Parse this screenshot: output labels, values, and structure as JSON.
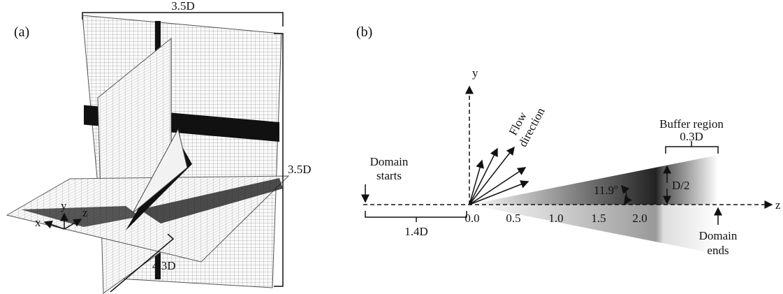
{
  "panel_a": {
    "label": "(a)",
    "dims": {
      "top": "3.5D",
      "right": "3.5D",
      "bottom": "4.3D"
    },
    "axes": {
      "x": "x",
      "y": "y",
      "z": "z"
    }
  },
  "panel_b": {
    "label": "(b)",
    "axis_y": "y",
    "axis_z": "z",
    "flow_direction": [
      "Flow",
      "direction"
    ],
    "buffer_region": {
      "title": "Buffer region",
      "size": "0.3D"
    },
    "domain_starts": [
      "Domain",
      "starts"
    ],
    "inlet_length": "1.4D",
    "ticks": [
      "0.0",
      "0.5",
      "1.0",
      "1.5",
      "2.0"
    ],
    "angle": {
      "value": "11.9",
      "unit": "o"
    },
    "radius": "D/2",
    "domain_ends": [
      "Domain",
      "ends"
    ]
  }
}
